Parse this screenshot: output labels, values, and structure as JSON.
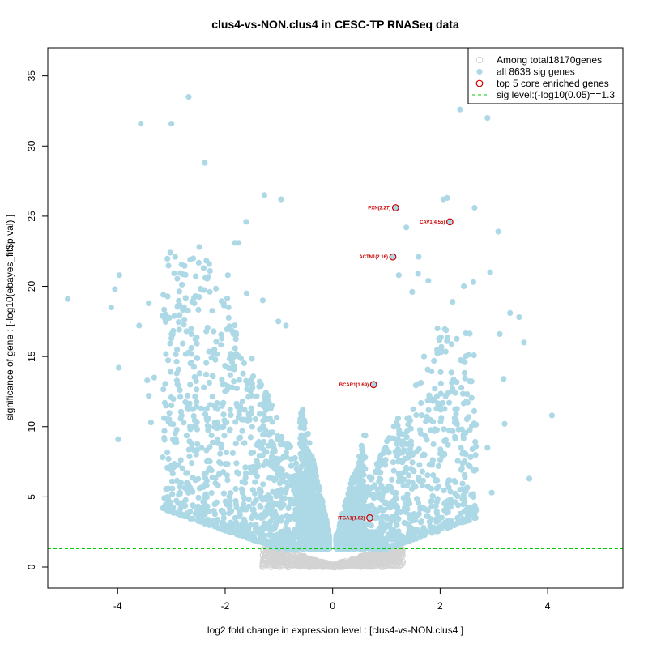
{
  "chart_data": {
    "type": "scatter",
    "title": "clus4-vs-NON.clus4 in CESC-TP RNASeq data",
    "xlabel": "log2 fold change in expression level : [clus4-vs-NON.clus4 ]",
    "ylabel": "significance of gene : [-log10(ebayes_fit$p.val) ]",
    "xlim": [
      -5.3,
      5.4
    ],
    "ylim": [
      -1.5,
      37
    ],
    "x_ticks": [
      -4,
      -2,
      0,
      2,
      4
    ],
    "y_ticks": [
      0,
      5,
      10,
      15,
      20,
      25,
      30,
      35
    ],
    "sig_level": 1.3,
    "colors": {
      "all": "#d3d3d3",
      "sig": "#add8e6",
      "top": "#cc0000",
      "sig_line": "#00cc00"
    },
    "legend": {
      "position": "top-right",
      "entries": [
        {
          "label": "Among total18170genes",
          "kind": "all"
        },
        {
          "label": "all 8638 sig genes",
          "kind": "sig"
        },
        {
          "label": "top 5 core enriched genes",
          "kind": "top"
        },
        {
          "label": "sig level:(-log10(0.05)==1.3",
          "kind": "line"
        }
      ]
    },
    "top_genes": [
      {
        "label": "PXN(2.27)",
        "x": 1.17,
        "y": 25.6
      },
      {
        "label": "CAV1(4.55)",
        "x": 2.18,
        "y": 24.6
      },
      {
        "label": "ACTN1(2.16)",
        "x": 1.12,
        "y": 22.1
      },
      {
        "label": "BCAR1(1.69)",
        "x": 0.76,
        "y": 13.0
      },
      {
        "label": "ITGA1(1.62)",
        "x": 0.69,
        "y": 3.5
      }
    ],
    "notable_points": [
      [
        -4.93,
        19.1
      ],
      [
        -4.12,
        18.5
      ],
      [
        -4.05,
        19.8
      ],
      [
        -3.97,
        20.8
      ],
      [
        -3.98,
        14.2
      ],
      [
        -3.99,
        9.1
      ],
      [
        -3.57,
        31.6
      ],
      [
        -3.6,
        17.2
      ],
      [
        -3.42,
        18.8
      ],
      [
        -3.0,
        31.6
      ],
      [
        -2.68,
        33.5
      ],
      [
        -2.38,
        28.8
      ],
      [
        -3.02,
        22.4
      ],
      [
        -2.93,
        22.1
      ],
      [
        -2.48,
        22.8
      ],
      [
        -2.65,
        21.9
      ],
      [
        -2.4,
        21.3
      ],
      [
        -2.35,
        16.8
      ],
      [
        -1.75,
        23.1
      ],
      [
        -1.82,
        23.1
      ],
      [
        -1.61,
        24.6
      ],
      [
        -1.27,
        26.5
      ],
      [
        -0.96,
        26.2
      ],
      [
        -1.95,
        20.8
      ],
      [
        -1.6,
        19.5
      ],
      [
        -1.3,
        19.0
      ],
      [
        -1.01,
        17.5
      ],
      [
        -0.87,
        17.2
      ],
      [
        -3.15,
        19.4
      ],
      [
        -3.32,
        13.5
      ],
      [
        -3.45,
        13.3
      ],
      [
        -3.1,
        11.5
      ],
      [
        -3.38,
        10.3
      ],
      [
        -3.42,
        12.2
      ],
      [
        -3.0,
        16.3
      ],
      [
        -2.2,
        15.5
      ],
      [
        2.06,
        26.2
      ],
      [
        2.37,
        32.6
      ],
      [
        2.88,
        32.0
      ],
      [
        2.64,
        25.6
      ],
      [
        2.13,
        26.3
      ],
      [
        1.23,
        20.8
      ],
      [
        1.59,
        20.9
      ],
      [
        1.6,
        22.1
      ],
      [
        3.08,
        23.9
      ],
      [
        1.37,
        24.2
      ],
      [
        2.93,
        21.0
      ],
      [
        2.44,
        20.0
      ],
      [
        2.62,
        20.3
      ],
      [
        3.3,
        18.1
      ],
      [
        3.47,
        17.8
      ],
      [
        3.56,
        16.0
      ],
      [
        3.11,
        16.6
      ],
      [
        3.18,
        13.4
      ],
      [
        4.08,
        10.8
      ],
      [
        3.66,
        6.3
      ],
      [
        2.96,
        5.3
      ],
      [
        2.58,
        4.2
      ],
      [
        2.88,
        8.5
      ],
      [
        3.2,
        10.2
      ],
      [
        1.48,
        19.6
      ],
      [
        1.78,
        20.4
      ],
      [
        1.95,
        17.0
      ],
      [
        1.7,
        15.0
      ],
      [
        2.23,
        18.9
      ]
    ]
  }
}
